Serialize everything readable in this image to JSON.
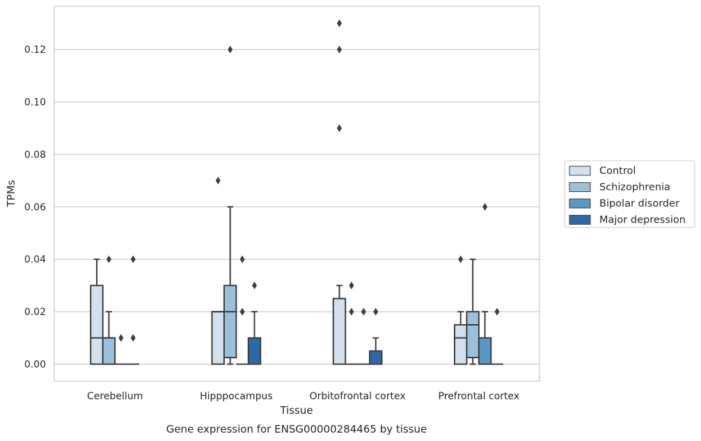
{
  "chart_data": {
    "type": "box",
    "title": "",
    "caption": "Gene expression for ENSG00000284465 by tissue",
    "xlabel": "Tissue",
    "ylabel": "TPMs",
    "ylim": [
      -0.0065,
      0.1365
    ],
    "yticks": [
      "0.00",
      "0.02",
      "0.04",
      "0.06",
      "0.08",
      "0.10",
      "0.12"
    ],
    "grid": "horizontal",
    "legend_position": "right",
    "categories": [
      "Cerebellum",
      "Hipppocampus",
      "Orbitofrontal cortex",
      "Prefrontal cortex"
    ],
    "series": [
      {
        "name": "Control",
        "color": "#d3e1ef",
        "boxes": [
          {
            "q1": 0,
            "median": 0.01,
            "q3": 0.03,
            "whislo": 0,
            "whishi": 0.04,
            "fliers": []
          },
          {
            "q1": 0,
            "median": 0.02,
            "q3": 0.02,
            "whislo": 0,
            "whishi": 0.02,
            "fliers": [
              0.07
            ]
          },
          {
            "q1": 0,
            "median": 0,
            "q3": 0.025,
            "whislo": 0,
            "whishi": 0.03,
            "fliers": [
              0.09,
              0.12,
              0.13
            ]
          },
          {
            "q1": 0,
            "median": 0.01,
            "q3": 0.015,
            "whislo": 0,
            "whishi": 0.02,
            "fliers": [
              0.04
            ]
          }
        ]
      },
      {
        "name": "Schizophrenia",
        "color": "#9ac0da",
        "boxes": [
          {
            "q1": 0,
            "median": 0.01,
            "q3": 0.01,
            "whislo": 0,
            "whishi": 0.02,
            "fliers": [
              0.04
            ]
          },
          {
            "q1": 0.0025,
            "median": 0.02,
            "q3": 0.03,
            "whislo": 0,
            "whishi": 0.06,
            "fliers": [
              0.12
            ]
          },
          {
            "q1": 0,
            "median": 0,
            "q3": 0,
            "whislo": 0,
            "whishi": 0,
            "fliers": [
              0.02,
              0.03
            ]
          },
          {
            "q1": 0.0025,
            "median": 0.015,
            "q3": 0.02,
            "whislo": 0,
            "whishi": 0.04,
            "fliers": []
          }
        ]
      },
      {
        "name": "Bipolar disorder",
        "color": "#5998c5",
        "boxes": [
          {
            "q1": 0,
            "median": 0,
            "q3": 0,
            "whislo": 0,
            "whishi": 0,
            "fliers": [
              0.01
            ]
          },
          {
            "q1": 0,
            "median": 0,
            "q3": 0,
            "whislo": 0,
            "whishi": 0,
            "fliers": [
              0.02,
              0.04
            ]
          },
          {
            "q1": 0,
            "median": 0,
            "q3": 0,
            "whislo": 0,
            "whishi": 0,
            "fliers": [
              0.02
            ]
          },
          {
            "q1": 0,
            "median": 0,
            "q3": 0.01,
            "whislo": 0,
            "whishi": 0.02,
            "fliers": [
              0.06
            ]
          }
        ]
      },
      {
        "name": "Major depression",
        "color": "#2b6aa8",
        "boxes": [
          {
            "q1": 0,
            "median": 0,
            "q3": 0,
            "whislo": 0,
            "whishi": 0,
            "fliers": [
              0.01,
              0.04
            ]
          },
          {
            "q1": 0,
            "median": 0,
            "q3": 0.01,
            "whislo": 0,
            "whishi": 0.02,
            "fliers": [
              0.03
            ]
          },
          {
            "q1": 0,
            "median": 0,
            "q3": 0.005,
            "whislo": 0,
            "whishi": 0.01,
            "fliers": [
              0.02
            ]
          },
          {
            "q1": 0,
            "median": 0,
            "q3": 0,
            "whislo": 0,
            "whishi": 0,
            "fliers": [
              0.02
            ]
          }
        ]
      }
    ]
  }
}
